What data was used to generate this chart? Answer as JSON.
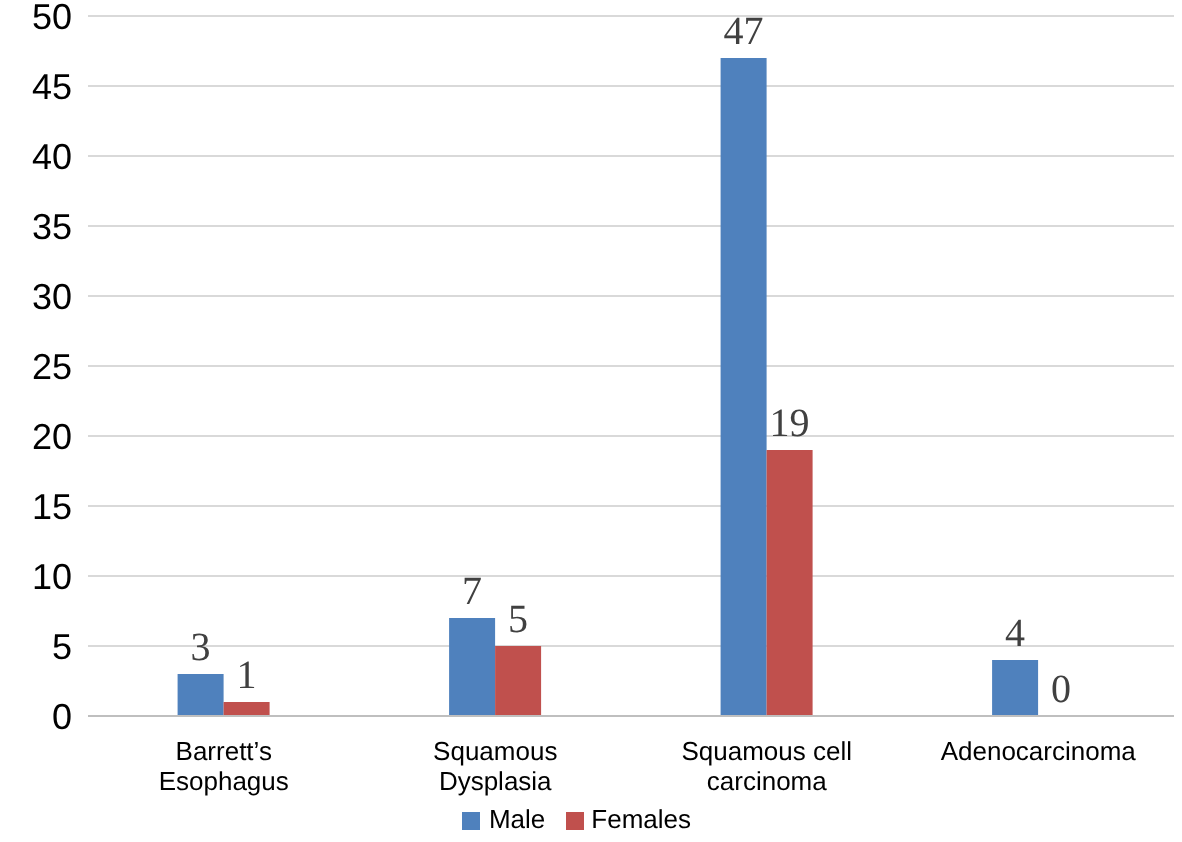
{
  "chart_data": {
    "type": "bar",
    "categories": [
      "Barrett’s Esophagus",
      "Squamous Dysplasia",
      "Squamous cell carcinoma",
      "Adenocarcinoma"
    ],
    "series": [
      {
        "name": "Male",
        "color": "#4f81bd",
        "values": [
          3,
          7,
          47,
          4
        ]
      },
      {
        "name": "Females",
        "color": "#c0504d",
        "values": [
          1,
          5,
          19,
          0
        ]
      }
    ],
    "ylim": [
      0,
      50
    ],
    "yticks": [
      0,
      5,
      10,
      15,
      20,
      25,
      30,
      35,
      40,
      45,
      50
    ],
    "grid": "y",
    "legend": "bottom",
    "data_labels": true
  }
}
